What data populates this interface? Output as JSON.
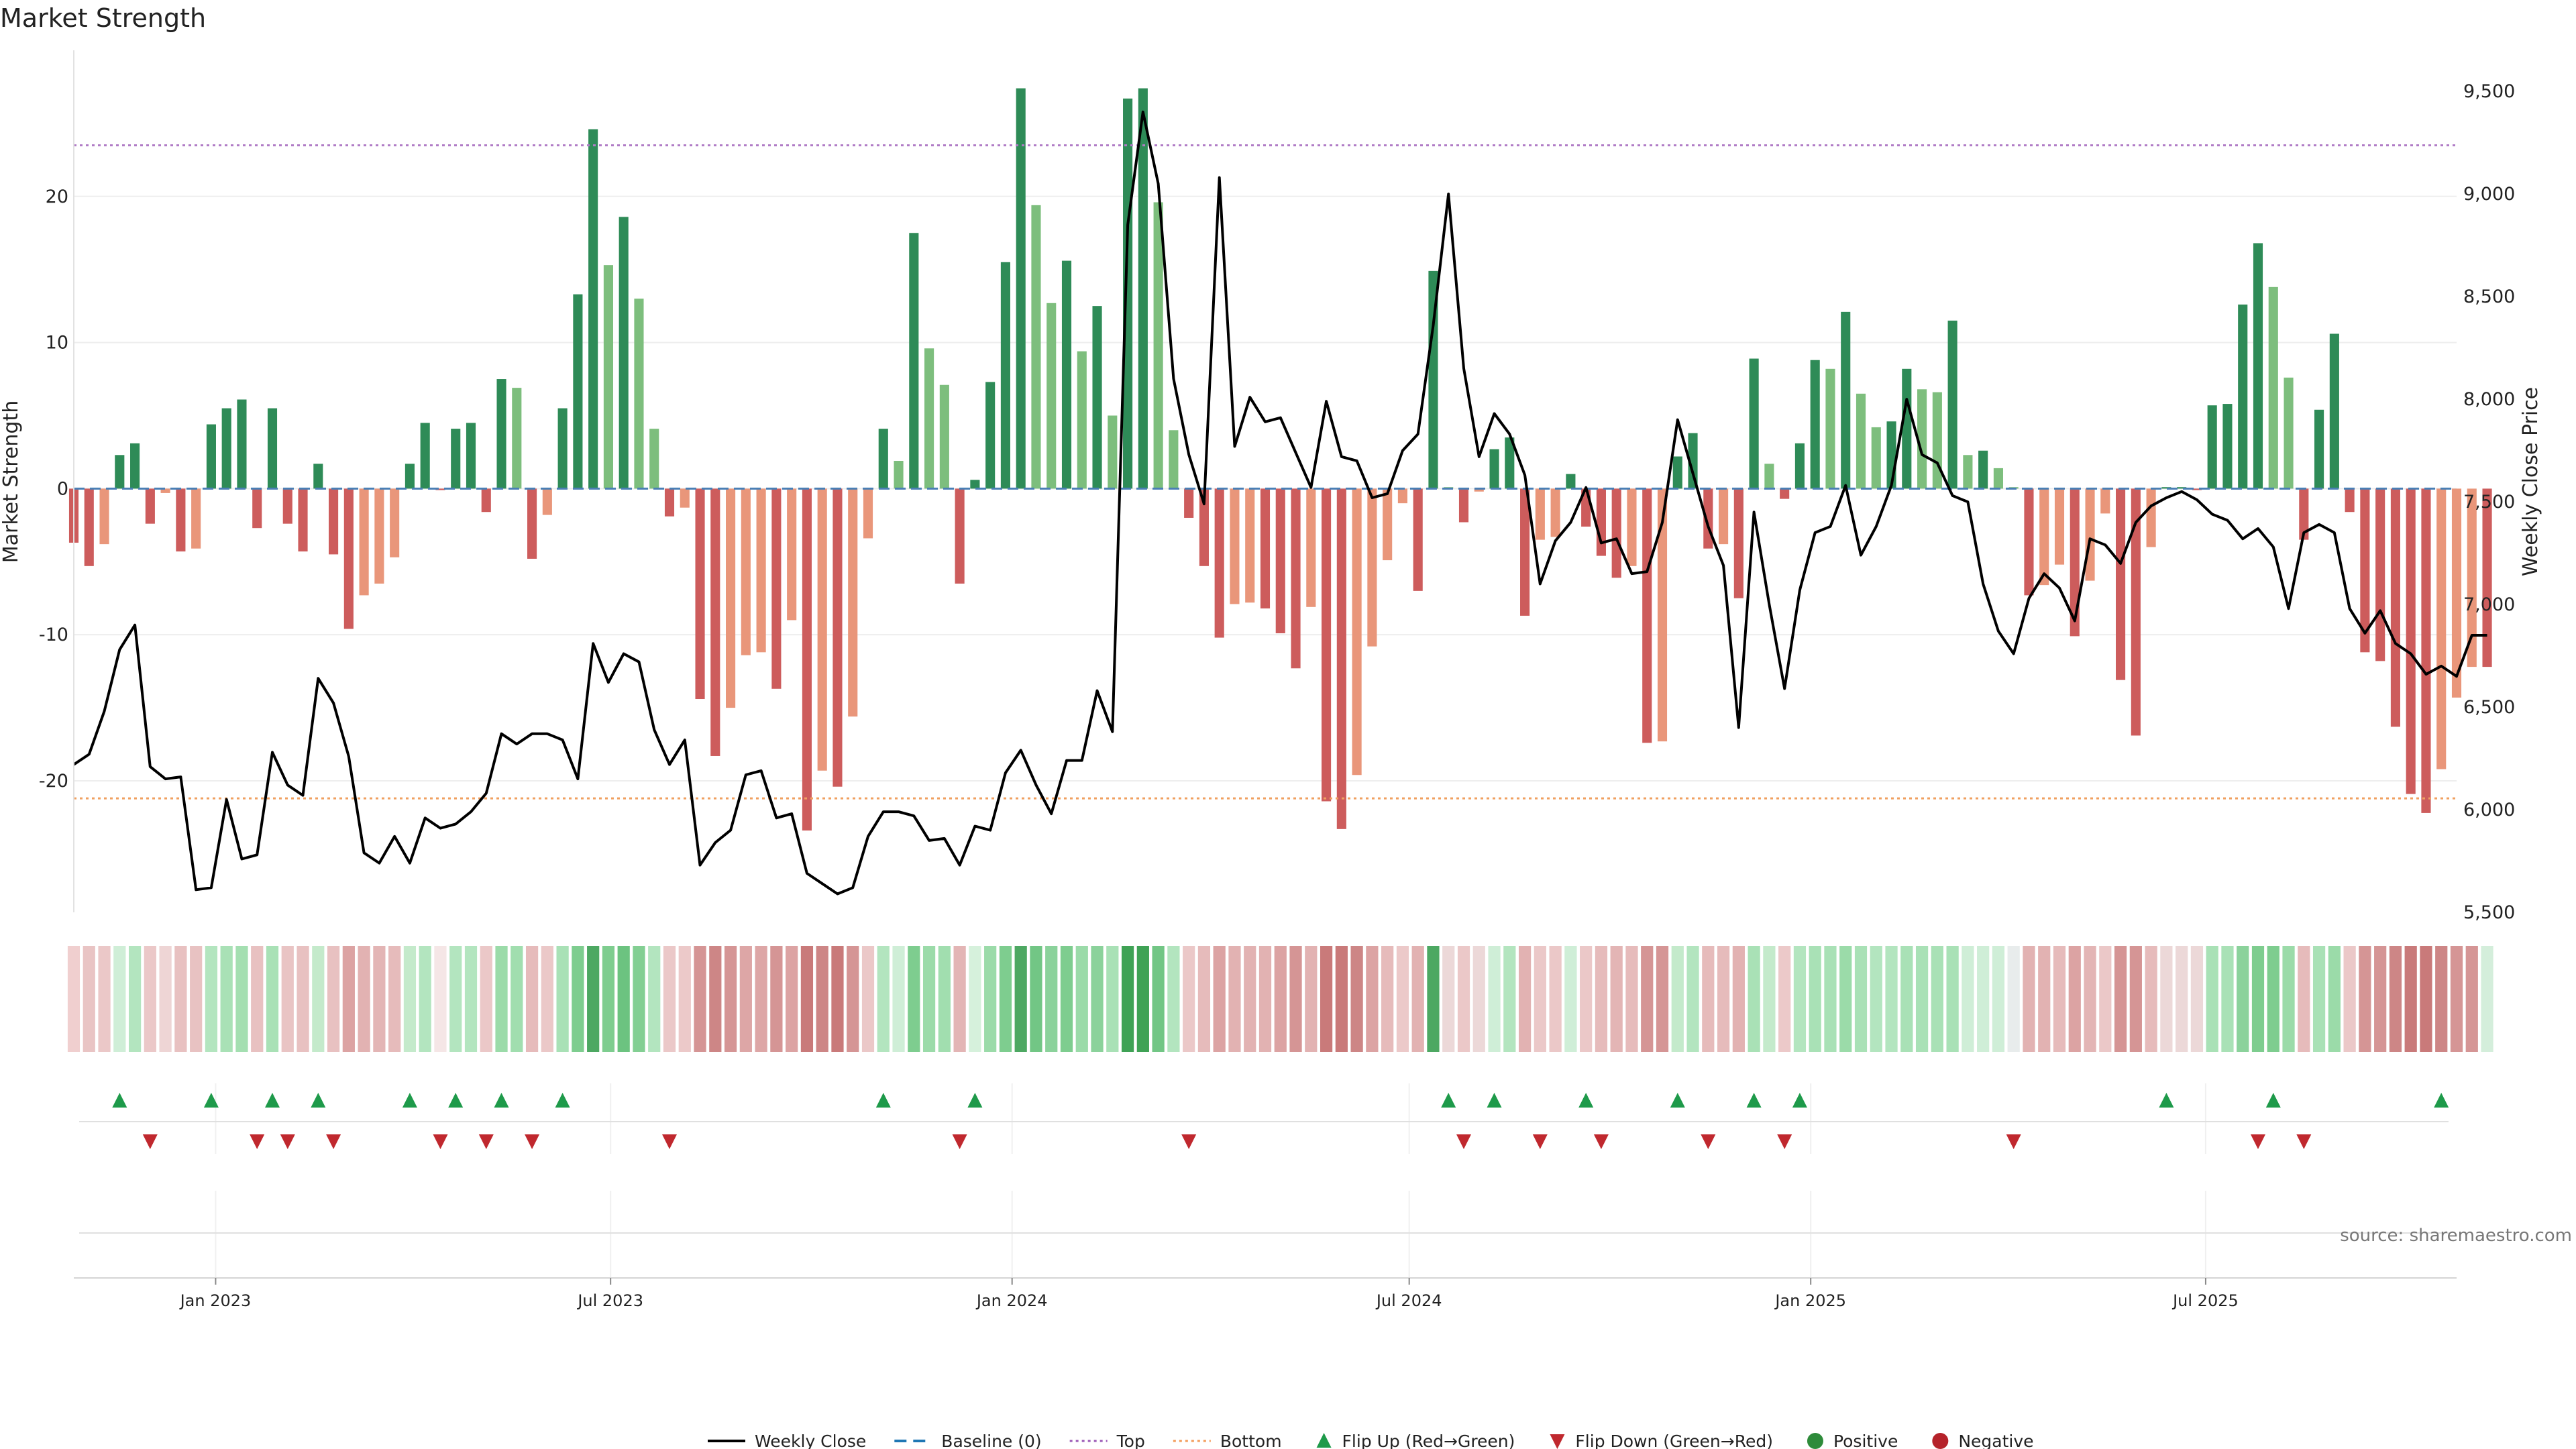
{
  "chart_data": {
    "type": "bar",
    "title": "Market Strength",
    "ylabel": "Market Strength",
    "y2label": "Weekly Close Price",
    "ylim": [
      -29,
      30
    ],
    "y2lim": [
      5500,
      9700
    ],
    "yticks": [
      -20,
      -10,
      0,
      10,
      20
    ],
    "y2ticks": [
      5500,
      6000,
      6500,
      7000,
      7500,
      8000,
      8500,
      9000,
      9500
    ],
    "top_threshold": 23.5,
    "bottom_threshold": -21.2,
    "x_start": "2022-10-28",
    "x_end": "2025-10-24",
    "x_step_days": 7,
    "xticks": [
      {
        "date": "2023-01-01",
        "label": "Jan 2023"
      },
      {
        "date": "2023-07-01",
        "label": "Jul 2023"
      },
      {
        "date": "2024-01-01",
        "label": "Jan 2024"
      },
      {
        "date": "2024-07-01",
        "label": "Jul 2024"
      },
      {
        "date": "2025-01-01",
        "label": "Jan 2025"
      },
      {
        "date": "2025-07-01",
        "label": "Jul 2025"
      }
    ],
    "strength": [
      -3.7,
      -5.3,
      -3.8,
      2.3,
      3.1,
      -2.4,
      -0.3,
      -4.3,
      -4.1,
      4.4,
      5.5,
      6.1,
      -2.7,
      5.5,
      -2.4,
      -4.3,
      1.7,
      -4.5,
      -9.6,
      -7.3,
      -6.5,
      -4.7,
      1.7,
      4.5,
      -0.1,
      4.1,
      4.5,
      -1.6,
      7.5,
      6.9,
      -4.8,
      -1.8,
      5.5,
      13.3,
      24.6,
      15.3,
      18.6,
      13.0,
      4.1,
      -1.9,
      -1.3,
      -14.4,
      -18.3,
      -15.0,
      -11.4,
      -11.2,
      -13.7,
      -9.0,
      -23.4,
      -19.3,
      -20.4,
      -15.6,
      -3.4,
      4.1,
      1.9,
      17.5,
      9.6,
      7.1,
      -6.5,
      0.6,
      7.3,
      15.5,
      27.4,
      19.4,
      12.7,
      15.6,
      9.4,
      12.5,
      5.0,
      26.7,
      27.4,
      19.6,
      4.0,
      -2.0,
      -5.3,
      -10.2,
      -7.9,
      -7.8,
      -8.2,
      -9.9,
      -12.3,
      -8.1,
      -21.4,
      -23.3,
      -19.6,
      -10.8,
      -4.9,
      -1.0,
      -7.0,
      14.9,
      0.1,
      -2.3,
      -0.2,
      2.7,
      3.5,
      -8.7,
      -3.5,
      -3.3,
      1.0,
      -2.6,
      -4.6,
      -6.1,
      -5.3,
      -17.4,
      -17.3,
      2.2,
      3.8,
      -4.1,
      -3.8,
      -7.5,
      8.9,
      1.7,
      -0.7,
      3.1,
      8.8,
      8.2,
      12.1,
      6.5,
      4.2,
      4.6,
      8.2,
      6.8,
      6.6,
      11.5,
      2.3,
      2.6,
      1.4,
      0.1,
      -7.3,
      -6.6,
      -5.2,
      -10.1,
      -6.3,
      -1.7,
      -13.1,
      -16.9,
      -4.0,
      0.1,
      0.1,
      -0.1,
      5.7,
      5.8,
      12.6,
      16.8,
      13.8,
      7.6,
      -3.5,
      5.4,
      10.6,
      -1.6,
      -11.2,
      -11.8,
      -16.3,
      -20.9,
      -22.2,
      -19.2,
      -14.3,
      -12.2,
      -12.2
    ],
    "weekly_close": [
      6220,
      6270,
      6480,
      6780,
      6900,
      6210,
      6150,
      6160,
      5610,
      5620,
      6050,
      5760,
      5780,
      6280,
      6120,
      6070,
      6640,
      6520,
      6260,
      5790,
      5740,
      5870,
      5740,
      5960,
      5910,
      5930,
      5990,
      6080,
      6370,
      6320,
      6370,
      6370,
      6340,
      6150,
      6810,
      6620,
      6760,
      6720,
      6390,
      6220,
      6340,
      5730,
      5840,
      5900,
      6170,
      6190,
      5960,
      5980,
      5690,
      5640,
      5590,
      5620,
      5870,
      5990,
      5990,
      5970,
      5850,
      5860,
      5730,
      5920,
      5900,
      6180,
      6290,
      6120,
      5980,
      6240,
      6240,
      6580,
      6380,
      8850,
      9400,
      9050,
      8100,
      7730,
      7490,
      9080,
      7770,
      8010,
      7890,
      7910,
      7740,
      7570,
      7990,
      7720,
      7700,
      7520,
      7540,
      7750,
      7830,
      8360,
      9000,
      8150,
      7720,
      7930,
      7830,
      7630,
      7100,
      7310,
      7400,
      7570,
      7300,
      7320,
      7150,
      7160,
      7400,
      7900,
      7640,
      7380,
      7190,
      6400,
      7450,
      7000,
      6590,
      7070,
      7350,
      7380,
      7580,
      7240,
      7380,
      7580,
      8000,
      7730,
      7690,
      7530,
      7500,
      7100,
      6870,
      6760,
      7030,
      7150,
      7080,
      6920,
      7320,
      7290,
      7200,
      7400,
      7480,
      7520,
      7550,
      7510,
      7440,
      7410,
      7320,
      7370,
      7280,
      6980,
      7350,
      7390,
      7350,
      6980,
      6860,
      6970,
      6810,
      6760,
      6660,
      6700,
      6650,
      6850,
      6850
    ],
    "heat_colors": [
      "#f0cfcf",
      "#e9c4c4",
      "#ebc8c8",
      "#cfeed7",
      "#b3e5bf",
      "#ebc8c8",
      "#eed5d5",
      "#e8c1c1",
      "#e8c2c2",
      "#b3e5bf",
      "#a9e1b6",
      "#a4dfb1",
      "#e8c1c1",
      "#a9e1b6",
      "#e9c4c4",
      "#e8c1c1",
      "#c4eacb",
      "#e8c1c1",
      "#dca3a3",
      "#e2b2b2",
      "#e3b5b5",
      "#e6bbbb",
      "#c4eacb",
      "#b3e5bf",
      "#f5e6e6",
      "#b3e5bf",
      "#b3e5bf",
      "#ebc8c8",
      "#9bdba9",
      "#a1deaf",
      "#e6bbbb",
      "#ebc8c8",
      "#a9e1b6",
      "#7ecd8f",
      "#4da862",
      "#7ecd8f",
      "#6cc380",
      "#83cf93",
      "#b3e5bf",
      "#ebc8c8",
      "#ecc9c9",
      "#d59595",
      "#cd8686",
      "#d59595",
      "#dda6a6",
      "#dda6a6",
      "#d59595",
      "#dca3a3",
      "#c97a7a",
      "#cd8686",
      "#c97a7a",
      "#d59595",
      "#ebc8c8",
      "#b3e5bf",
      "#cfeed7",
      "#7ecd8f",
      "#9bdba9",
      "#a1deaf",
      "#e3b5b5",
      "#d6f1dc",
      "#9bdba9",
      "#7ecd8f",
      "#4da862",
      "#72c685",
      "#8bd29b",
      "#7ecd8f",
      "#9bdba9",
      "#8bd29b",
      "#a9e1b6",
      "#3fa255",
      "#3fa255",
      "#72c685",
      "#b3e5bf",
      "#ebc8c8",
      "#e6bbbb",
      "#dca3a3",
      "#e2b2b2",
      "#e2b2b2",
      "#e2b2b2",
      "#dca3a3",
      "#d59595",
      "#e2b2b2",
      "#c97a7a",
      "#c97a7a",
      "#cd8686",
      "#dca3a3",
      "#e6bbbb",
      "#ecc9c9",
      "#e2b2b2",
      "#4da862",
      "#ecd8d8",
      "#ebc8c8",
      "#ecd8d8",
      "#cfeed7",
      "#b3e5bf",
      "#e2b2b2",
      "#ebc8c8",
      "#ebc8c8",
      "#cfeed7",
      "#ebc8c8",
      "#e6bbbb",
      "#e3b5b5",
      "#e6bbbb",
      "#d59595",
      "#d59595",
      "#c4eacb",
      "#b3e5bf",
      "#e6bbbb",
      "#e6bbbb",
      "#e2b2b2",
      "#a9e1b6",
      "#c4eacb",
      "#ecc9c9",
      "#b3e5bf",
      "#a9e1b6",
      "#a9e1b6",
      "#9bdba9",
      "#a9e1b6",
      "#b3e5bf",
      "#b3e5bf",
      "#a9e1b6",
      "#a9e1b6",
      "#a9e1b6",
      "#a9e1b6",
      "#cfeed7",
      "#cfeed7",
      "#cfeed7",
      "#e8ecec",
      "#e2b2b2",
      "#e2b2b2",
      "#e6bbbb",
      "#dca3a3",
      "#e3b5b5",
      "#ebc8c8",
      "#d59595",
      "#d59595",
      "#e6bbbb",
      "#ecd8d8",
      "#ecd8d8",
      "#ecd8d8",
      "#a9e1b6",
      "#a9e1b6",
      "#8bd29b",
      "#7ecd8f",
      "#7ecd8f",
      "#9bdba9",
      "#e6bbbb",
      "#a9e1b6",
      "#9bdba9",
      "#ebc8c8",
      "#d59595",
      "#d59595",
      "#cd8686",
      "#c97a7a",
      "#c97a7a",
      "#cd8686",
      "#d59595",
      "#d59595",
      "#d4eedb"
    ],
    "flip_up": [
      3,
      9,
      13,
      16,
      22,
      25,
      28,
      32,
      53,
      59,
      90,
      93,
      99,
      105,
      110,
      113,
      137,
      144,
      155
    ],
    "flip_down": [
      5,
      12,
      14,
      17,
      24,
      27,
      30,
      39,
      58,
      73,
      91,
      96,
      100,
      107,
      112,
      127,
      143,
      146
    ],
    "source": "source: sharemaestro.com",
    "legend": [
      {
        "key": "weekly_close",
        "label": "Weekly Close",
        "kind": "line",
        "color": "#000000"
      },
      {
        "key": "baseline",
        "label": "Baseline (0)",
        "kind": "dashed",
        "color": "#1f77b4"
      },
      {
        "key": "top",
        "label": "Top",
        "kind": "dotted",
        "color": "#9b59b6"
      },
      {
        "key": "bottom",
        "label": "Bottom",
        "kind": "dotted",
        "color": "#f39c5a"
      },
      {
        "key": "flip_up",
        "label": "Flip Up (Red→Green)",
        "kind": "tri-up",
        "color": "#1e9a4a"
      },
      {
        "key": "flip_down",
        "label": "Flip Down (Green→Red)",
        "kind": "tri-down",
        "color": "#c0282e"
      },
      {
        "key": "positive",
        "label": "Positive",
        "kind": "dot",
        "color": "#2e8b3a"
      },
      {
        "key": "negative",
        "label": "Negative",
        "kind": "dot",
        "color": "#b5222a"
      }
    ],
    "colors": {
      "pos_strong": "#2e8b57",
      "pos_light": "#7dbe7d",
      "neg_strong": "#cd5c5c",
      "neg_light": "#e9967a",
      "baseline": "#4a7fb5",
      "top": "#b07cc6",
      "bottom": "#f0a060",
      "grid": "#eeeeee",
      "price_line": "#000000"
    }
  }
}
